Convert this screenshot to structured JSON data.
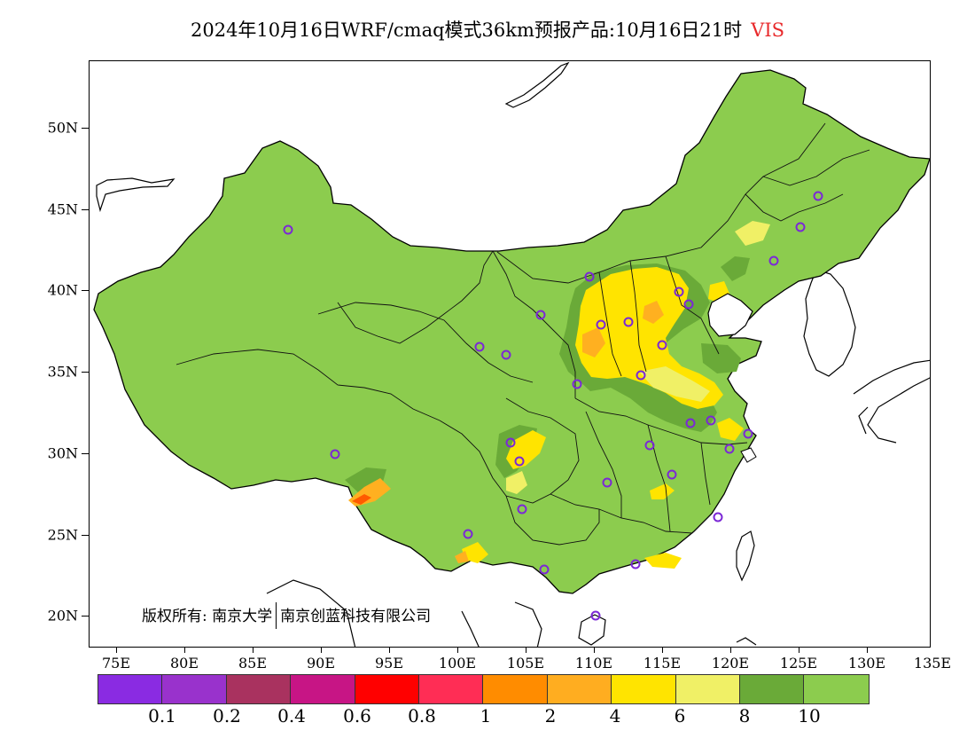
{
  "title": {
    "main": "2024年10月16日WRF/cmaq模式36km预报产品:10月16日21时",
    "variable": "VIS",
    "variable_color": "#e8292b"
  },
  "colors": {
    "land_good": "#8ccc4e",
    "moderate_green": "#6aaa38",
    "light_yellow": "#f0f066",
    "yellow": "#ffe400",
    "orange_light": "#ffb020",
    "orange": "#ff8800",
    "red": "#ff0000",
    "station_marker": "#7b28d6"
  },
  "axes": {
    "lat_labels": [
      "50N",
      "45N",
      "40N",
      "35N",
      "30N",
      "25N",
      "20N"
    ],
    "lon_labels": [
      "75E",
      "80E",
      "85E",
      "90E",
      "95E",
      "100E",
      "105E",
      "110E",
      "115E",
      "120E",
      "125E",
      "130E",
      "135E"
    ]
  },
  "copyright": {
    "prefix": "版权所有:",
    "org1": "南京大学",
    "org2": "南京创蓝科技有限公司"
  },
  "legend": {
    "colors": [
      "#8a2be2",
      "#9932cc",
      "#a9325f",
      "#c71585",
      "#ff0000",
      "#ff2d55",
      "#ff8c00",
      "#ffad20",
      "#ffe400",
      "#f0f066",
      "#6aaa38",
      "#8ccc4e"
    ],
    "labels": [
      "0.1",
      "0.2",
      "0.4",
      "0.6",
      "0.8",
      "1",
      "2",
      "4",
      "6",
      "8",
      "10"
    ]
  }
}
